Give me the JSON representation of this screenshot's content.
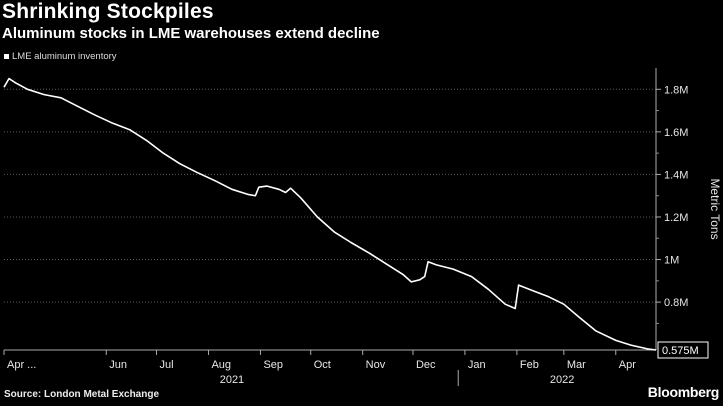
{
  "title": "Shrinking Stockpiles",
  "subtitle": "Aluminum stocks in LME warehouses extend decline",
  "source": "Source: London Metal Exchange",
  "brand": "Bloomberg",
  "chart_data": {
    "type": "line",
    "ylabel": "Metric Tons",
    "ylim": [
      575000,
      1900000
    ],
    "y_ticks": [
      {
        "value": 800000,
        "label": "0.8M"
      },
      {
        "value": 1000000,
        "label": "1M"
      },
      {
        "value": 1200000,
        "label": "1.2M"
      },
      {
        "value": 1400000,
        "label": "1.4M"
      },
      {
        "value": 1600000,
        "label": "1.6M"
      },
      {
        "value": 1800000,
        "label": "1.8M"
      }
    ],
    "x_ticks": [
      {
        "date": "2021-04-01",
        "label": "Apr ..."
      },
      {
        "date": "2021-06-01",
        "label": "Jun"
      },
      {
        "date": "2021-07-01",
        "label": "Jul"
      },
      {
        "date": "2021-08-01",
        "label": "Aug"
      },
      {
        "date": "2021-09-01",
        "label": "Sep"
      },
      {
        "date": "2021-10-01",
        "label": "Oct"
      },
      {
        "date": "2021-11-01",
        "label": "Nov"
      },
      {
        "date": "2021-12-01",
        "label": "Dec"
      },
      {
        "date": "2022-01-01",
        "label": "Jan"
      },
      {
        "date": "2022-02-01",
        "label": "Feb"
      },
      {
        "date": "2022-03-01",
        "label": "Mar"
      },
      {
        "date": "2022-04-01",
        "label": "Apr"
      }
    ],
    "x_range": [
      "2021-04-01",
      "2022-04-25"
    ],
    "year_labels": [
      {
        "label": "2021",
        "date": "2021-08-15"
      },
      {
        "label": "2022",
        "date": "2022-02-28"
      }
    ],
    "year_divider": "2021-12-28",
    "grid": true,
    "legend": "top-left",
    "series": [
      {
        "name": "LME aluminum inventory",
        "color": "#ffffff",
        "last_value_label": "0.575M",
        "points": [
          [
            "2021-04-01",
            1810000
          ],
          [
            "2021-04-04",
            1850000
          ],
          [
            "2021-04-08",
            1830000
          ],
          [
            "2021-04-15",
            1800000
          ],
          [
            "2021-04-25",
            1775000
          ],
          [
            "2021-05-05",
            1760000
          ],
          [
            "2021-05-15",
            1720000
          ],
          [
            "2021-05-25",
            1680000
          ],
          [
            "2021-06-05",
            1640000
          ],
          [
            "2021-06-15",
            1610000
          ],
          [
            "2021-06-25",
            1560000
          ],
          [
            "2021-07-05",
            1500000
          ],
          [
            "2021-07-15",
            1450000
          ],
          [
            "2021-07-25",
            1410000
          ],
          [
            "2021-08-05",
            1370000
          ],
          [
            "2021-08-15",
            1330000
          ],
          [
            "2021-08-25",
            1305000
          ],
          [
            "2021-08-29",
            1300000
          ],
          [
            "2021-08-31",
            1340000
          ],
          [
            "2021-09-05",
            1345000
          ],
          [
            "2021-09-12",
            1330000
          ],
          [
            "2021-09-16",
            1315000
          ],
          [
            "2021-09-19",
            1335000
          ],
          [
            "2021-09-25",
            1290000
          ],
          [
            "2021-10-05",
            1200000
          ],
          [
            "2021-10-15",
            1130000
          ],
          [
            "2021-10-25",
            1080000
          ],
          [
            "2021-11-05",
            1030000
          ],
          [
            "2021-11-15",
            980000
          ],
          [
            "2021-11-25",
            930000
          ],
          [
            "2021-11-30",
            895000
          ],
          [
            "2021-12-05",
            905000
          ],
          [
            "2021-12-08",
            920000
          ],
          [
            "2021-12-10",
            990000
          ],
          [
            "2021-12-15",
            975000
          ],
          [
            "2021-12-25",
            955000
          ],
          [
            "2022-01-05",
            920000
          ],
          [
            "2022-01-15",
            860000
          ],
          [
            "2022-01-25",
            790000
          ],
          [
            "2022-01-31",
            770000
          ],
          [
            "2022-02-02",
            880000
          ],
          [
            "2022-02-10",
            855000
          ],
          [
            "2022-02-20",
            825000
          ],
          [
            "2022-03-01",
            790000
          ],
          [
            "2022-03-10",
            730000
          ],
          [
            "2022-03-20",
            665000
          ],
          [
            "2022-04-01",
            620000
          ],
          [
            "2022-04-10",
            598000
          ],
          [
            "2022-04-20",
            580000
          ],
          [
            "2022-04-25",
            575000
          ]
        ]
      }
    ]
  }
}
